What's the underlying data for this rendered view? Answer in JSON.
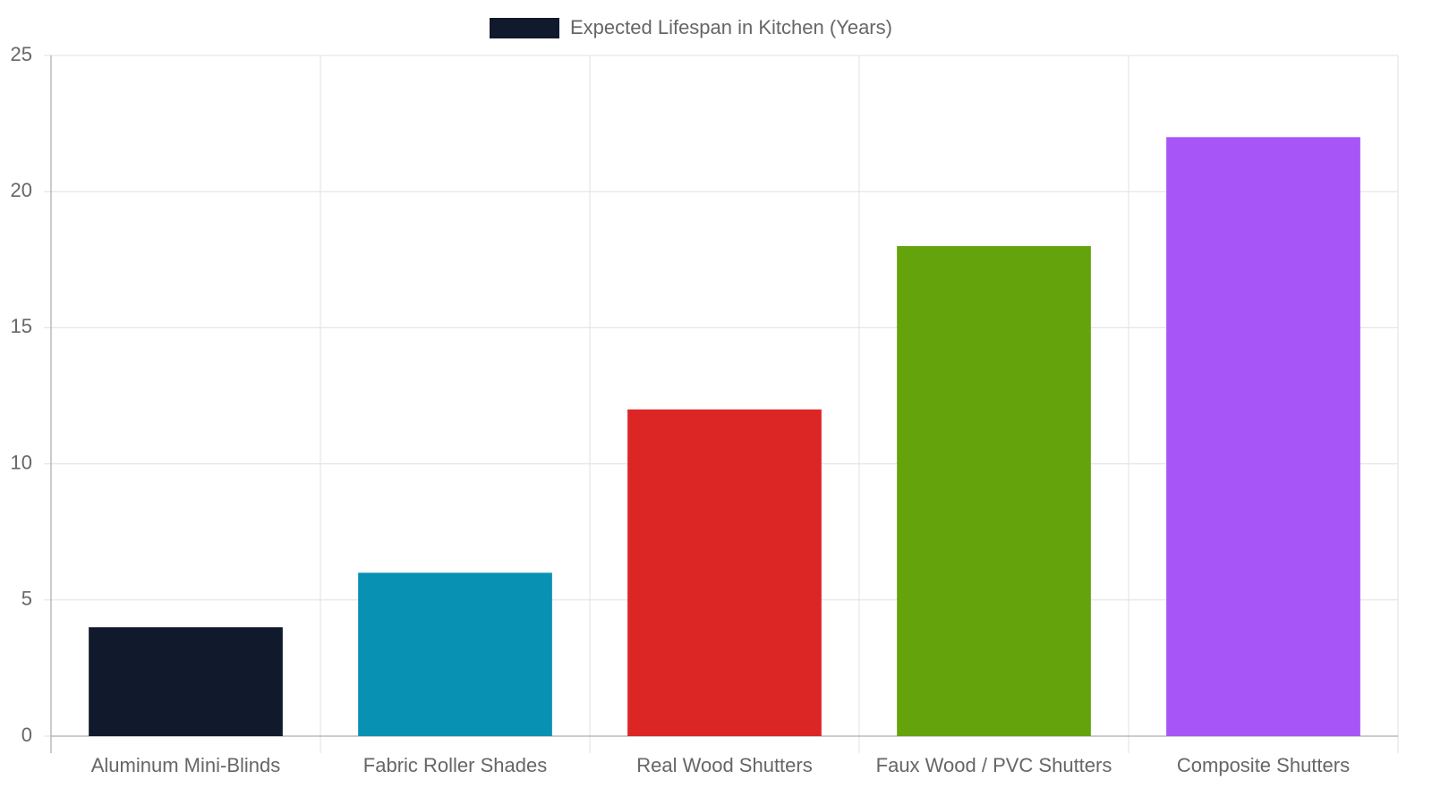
{
  "chart_data": {
    "type": "bar",
    "categories": [
      "Aluminum Mini-Blinds",
      "Fabric Roller Shades",
      "Real Wood Shutters",
      "Faux Wood / PVC Shutters",
      "Composite Shutters"
    ],
    "series": [
      {
        "name": "Expected Lifespan in Kitchen (Years)",
        "colors": [
          "#111a2c",
          "#0891b2",
          "#dc2626",
          "#65a30d",
          "#a855f7"
        ],
        "values": [
          4,
          6,
          12,
          18,
          22
        ]
      }
    ],
    "ylim": [
      0,
      25
    ],
    "yticks": [
      0,
      5,
      10,
      15,
      20,
      25
    ],
    "grid": true,
    "legend": "top"
  }
}
